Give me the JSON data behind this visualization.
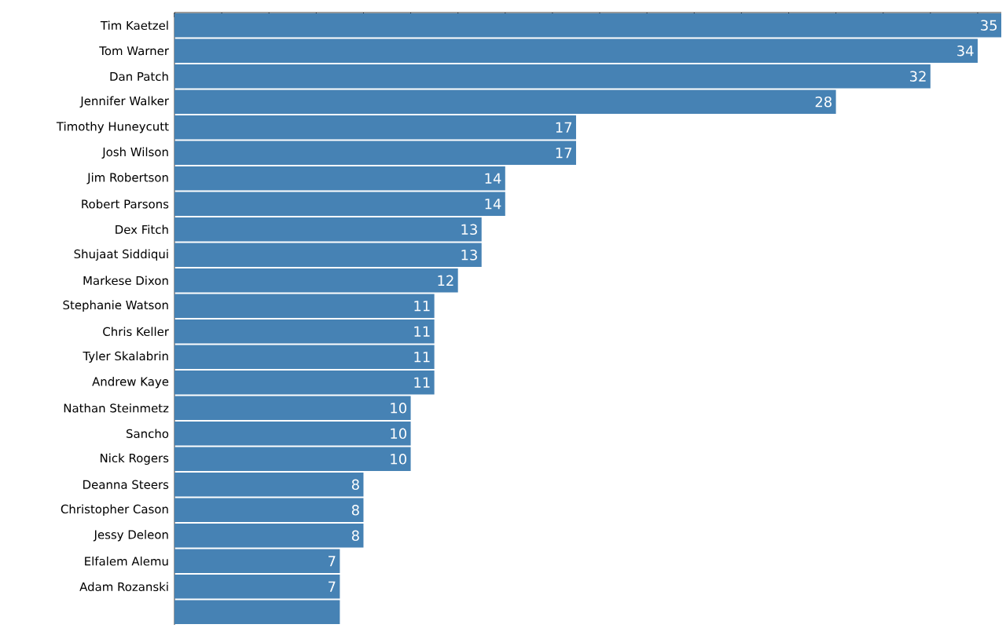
{
  "chart_data": {
    "type": "bar",
    "orientation": "horizontal",
    "categories": [
      "Tim Kaetzel",
      "Tom Warner",
      "Dan Patch",
      "Jennifer Walker",
      "Timothy Huneycutt",
      "Josh Wilson",
      "Jim Robertson",
      "Robert Parsons",
      "Dex Fitch",
      "Shujaat Siddiqui",
      "Markese Dixon",
      "Stephanie Watson",
      "Chris Keller",
      "Tyler Skalabrin",
      "Andrew Kaye",
      "Nathan Steinmetz",
      "Sancho",
      "Nick Rogers",
      "Deanna Steers",
      "Christopher Cason",
      "Jessy Deleon",
      "Elfalem Alemu",
      "Adam Rozanski",
      null
    ],
    "values": [
      35,
      34,
      32,
      28,
      17,
      17,
      14,
      14,
      13,
      13,
      12,
      11,
      11,
      11,
      11,
      10,
      10,
      10,
      8,
      8,
      8,
      7,
      7,
      7
    ],
    "value_labels": [
      "35",
      "34",
      "32",
      "28",
      "17",
      "17",
      "14",
      "14",
      "13",
      "13",
      "12",
      "11",
      "11",
      "11",
      "11",
      "10",
      "10",
      "10",
      "8",
      "8",
      "8",
      "7",
      "7",
      null
    ],
    "color": "#4682b4",
    "xlim": [
      0,
      35
    ],
    "xticks": [
      {
        "value": 0,
        "label": null
      },
      {
        "value": 2,
        "label": null
      },
      {
        "value": 4,
        "label": null
      },
      {
        "value": 6,
        "label": null
      },
      {
        "value": 8,
        "label": null
      },
      {
        "value": 10,
        "label": null
      },
      {
        "value": 12,
        "label": null
      },
      {
        "value": 14,
        "label": null
      },
      {
        "value": 16,
        "label": null
      },
      {
        "value": 18,
        "label": null
      },
      {
        "value": 20,
        "label": null
      },
      {
        "value": 22,
        "label": null
      },
      {
        "value": 24,
        "label": null
      },
      {
        "value": 26,
        "label": null
      },
      {
        "value": 28,
        "label": null
      },
      {
        "value": 30,
        "label": null
      },
      {
        "value": 32,
        "label": null
      },
      {
        "value": 34,
        "label": null
      }
    ],
    "tick_labels": "y"
  }
}
